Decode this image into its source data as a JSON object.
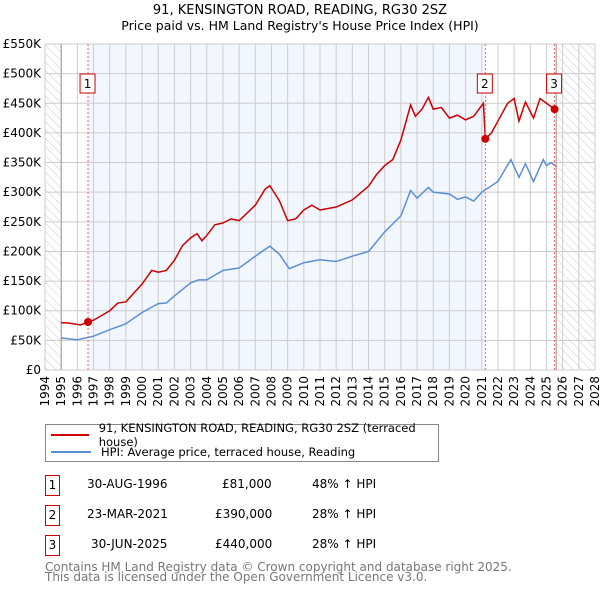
{
  "chart_data": {
    "type": "line",
    "title": "91, KENSINGTON ROAD, READING, RG30 2SZ",
    "subtitle": "Price paid vs. HM Land Registry's House Price Index (HPI)",
    "xlim": [
      1994,
      2028
    ],
    "ylim": [
      0,
      550000
    ],
    "x_ticks": [
      "1994",
      "1995",
      "1996",
      "1997",
      "1998",
      "1999",
      "2000",
      "2001",
      "2002",
      "2003",
      "2004",
      "2005",
      "2006",
      "2007",
      "2008",
      "2009",
      "2010",
      "2011",
      "2012",
      "2013",
      "2014",
      "2015",
      "2016",
      "2017",
      "2018",
      "2019",
      "2020",
      "2021",
      "2022",
      "2023",
      "2024",
      "2025",
      "2026",
      "2027",
      "2028"
    ],
    "y_ticks": [
      {
        "v": 0,
        "label": "£0"
      },
      {
        "v": 50000,
        "label": "£50K"
      },
      {
        "v": 100000,
        "label": "£100K"
      },
      {
        "v": 150000,
        "label": "£150K"
      },
      {
        "v": 200000,
        "label": "£200K"
      },
      {
        "v": 250000,
        "label": "£250K"
      },
      {
        "v": 300000,
        "label": "£300K"
      },
      {
        "v": 350000,
        "label": "£350K"
      },
      {
        "v": 400000,
        "label": "£400K"
      },
      {
        "v": 450000,
        "label": "£450K"
      },
      {
        "v": 500000,
        "label": "£500K"
      },
      {
        "v": 550000,
        "label": "£550K"
      }
    ],
    "grid": true,
    "series": [
      {
        "name": "91, KENSINGTON ROAD, READING, RG30 2SZ (terraced house)",
        "color": "#cc0000",
        "points": [
          [
            1995,
            80
          ],
          [
            1995.5,
            79
          ],
          [
            1996.2,
            76
          ],
          [
            1996.66,
            81
          ],
          [
            1997,
            84
          ],
          [
            1998,
            100
          ],
          [
            1998.5,
            113
          ],
          [
            1999,
            115
          ],
          [
            2000,
            145
          ],
          [
            2000.6,
            168
          ],
          [
            2001,
            165
          ],
          [
            2001.5,
            168
          ],
          [
            2002,
            185
          ],
          [
            2002.5,
            210
          ],
          [
            2003,
            223
          ],
          [
            2003.4,
            230
          ],
          [
            2003.7,
            218
          ],
          [
            2004,
            227
          ],
          [
            2004.5,
            245
          ],
          [
            2005,
            248
          ],
          [
            2005.5,
            255
          ],
          [
            2006,
            252
          ],
          [
            2007,
            278
          ],
          [
            2007.6,
            305
          ],
          [
            2007.9,
            311
          ],
          [
            2008.5,
            285
          ],
          [
            2009,
            252
          ],
          [
            2009.5,
            255
          ],
          [
            2010,
            270
          ],
          [
            2010.5,
            278
          ],
          [
            2011,
            270
          ],
          [
            2012,
            275
          ],
          [
            2013,
            287
          ],
          [
            2014,
            310
          ],
          [
            2014.5,
            330
          ],
          [
            2015,
            345
          ],
          [
            2015.5,
            355
          ],
          [
            2016,
            388
          ],
          [
            2016.6,
            447
          ],
          [
            2016.9,
            428
          ],
          [
            2017.3,
            440
          ],
          [
            2017.7,
            460
          ],
          [
            2018,
            440
          ],
          [
            2018.5,
            443
          ],
          [
            2019,
            425
          ],
          [
            2019.5,
            430
          ],
          [
            2020,
            422
          ],
          [
            2020.5,
            428
          ],
          [
            2021.1,
            450
          ],
          [
            2021.22,
            390
          ],
          [
            2021.6,
            400
          ],
          [
            2022,
            420
          ],
          [
            2022.6,
            450
          ],
          [
            2023,
            458
          ],
          [
            2023.3,
            420
          ],
          [
            2023.7,
            452
          ],
          [
            2024.2,
            425
          ],
          [
            2024.6,
            458
          ],
          [
            2025,
            450
          ],
          [
            2025.5,
            440
          ]
        ]
      },
      {
        "name": "HPI: Average price, terraced house, Reading",
        "color": "#5b8fd4",
        "points": [
          [
            1995,
            54
          ],
          [
            1996,
            51
          ],
          [
            1997,
            57
          ],
          [
            1998,
            68
          ],
          [
            1999,
            78
          ],
          [
            2000,
            97
          ],
          [
            2001,
            112
          ],
          [
            2001.5,
            113
          ],
          [
            2002,
            125
          ],
          [
            2003,
            147
          ],
          [
            2003.5,
            152
          ],
          [
            2004,
            152
          ],
          [
            2005,
            168
          ],
          [
            2006,
            172
          ],
          [
            2007,
            192
          ],
          [
            2007.9,
            209
          ],
          [
            2008.5,
            195
          ],
          [
            2009.1,
            171
          ],
          [
            2010,
            181
          ],
          [
            2011,
            186
          ],
          [
            2012,
            183
          ],
          [
            2013,
            192
          ],
          [
            2014,
            200
          ],
          [
            2015,
            233
          ],
          [
            2016,
            260
          ],
          [
            2016.6,
            303
          ],
          [
            2017,
            290
          ],
          [
            2017.7,
            308
          ],
          [
            2018,
            300
          ],
          [
            2019,
            297
          ],
          [
            2019.5,
            288
          ],
          [
            2020,
            292
          ],
          [
            2020.5,
            285
          ],
          [
            2021,
            300
          ],
          [
            2022,
            318
          ],
          [
            2022.8,
            355
          ],
          [
            2023.3,
            325
          ],
          [
            2023.7,
            348
          ],
          [
            2024.2,
            318
          ],
          [
            2024.8,
            355
          ],
          [
            2025,
            345
          ],
          [
            2025.3,
            350
          ],
          [
            2025.6,
            343
          ]
        ]
      }
    ],
    "sales": [
      {
        "n": "1",
        "x": 1996.66,
        "y": 81
      },
      {
        "n": "2",
        "x": 2021.22,
        "y": 390
      },
      {
        "n": "3",
        "x": 2025.5,
        "y": 440
      }
    ]
  },
  "legend": {
    "property": "91, KENSINGTON ROAD, READING, RG30 2SZ (terraced house)",
    "hpi": "HPI: Average price, terraced house, Reading"
  },
  "transactions": [
    {
      "n": "1",
      "date": "30-AUG-1996",
      "price": "£81,000",
      "hpi": "48% ↑ HPI"
    },
    {
      "n": "2",
      "date": "23-MAR-2021",
      "price": "£390,000",
      "hpi": "28% ↑ HPI"
    },
    {
      "n": "3",
      "date": "30-JUN-2025",
      "price": "£440,000",
      "hpi": "28% ↑ HPI"
    }
  ],
  "footer": {
    "line1": "Contains HM Land Registry data © Crown copyright and database right 2025.",
    "line2": "This data is licensed under the Open Government Licence v3.0."
  }
}
